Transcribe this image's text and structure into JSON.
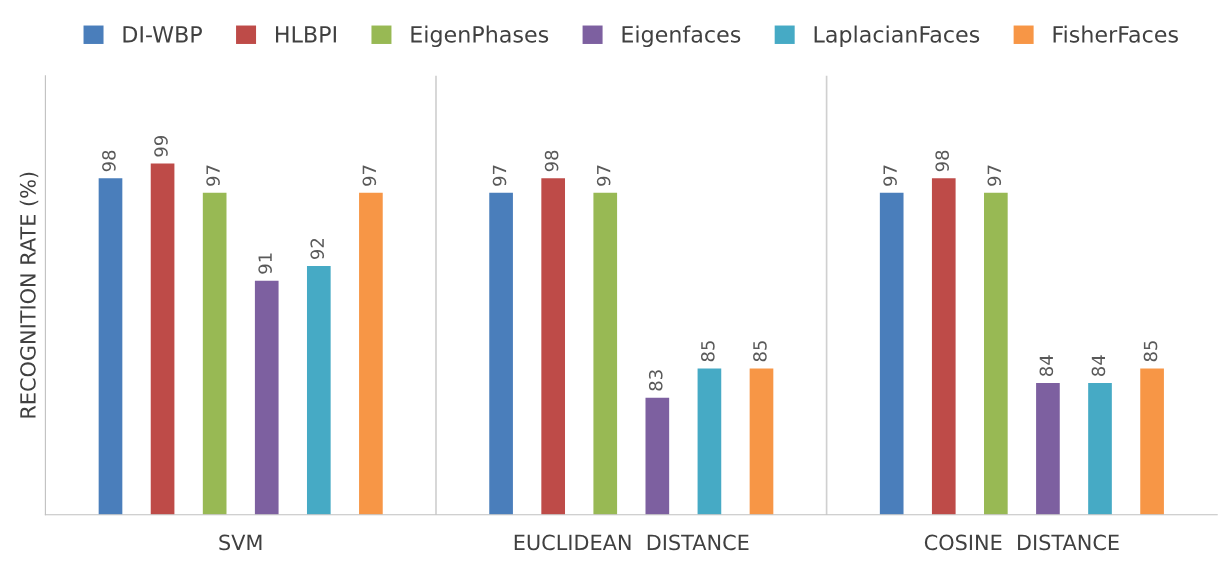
{
  "chart_data": {
    "type": "bar",
    "ylabel": "RECOGNITION RATE (%)",
    "categories": [
      "SVM",
      "EUCLIDEAN  DISTANCE",
      "COSINE  DISTANCE"
    ],
    "series": [
      {
        "name": "DI-WBP",
        "color": "#4a7ebb",
        "values": [
          98,
          97,
          97
        ]
      },
      {
        "name": "HLBPI",
        "color": "#be4b48",
        "values": [
          99,
          98,
          98
        ]
      },
      {
        "name": "EigenPhases",
        "color": "#98b954",
        "values": [
          97,
          97,
          97
        ]
      },
      {
        "name": "Eigenfaces",
        "color": "#7d60a0",
        "values": [
          91,
          83,
          84
        ]
      },
      {
        "name": "LaplacianFaces",
        "color": "#46aac5",
        "values": [
          92,
          85,
          84
        ]
      },
      {
        "name": "FisherFaces",
        "color": "#f79646",
        "values": [
          97,
          85,
          85
        ]
      }
    ],
    "ylim": [
      75,
      105
    ],
    "tick_labels": "x",
    "data_labels": true,
    "grid": "x",
    "legend": "top"
  }
}
